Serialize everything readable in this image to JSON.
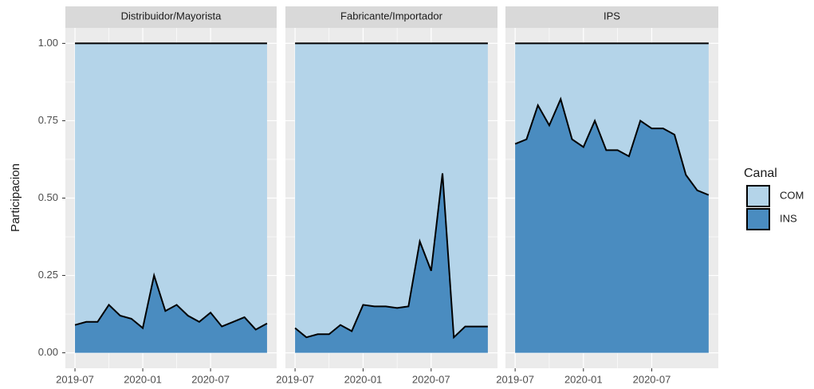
{
  "chart_data": [
    {
      "type": "stacked_area",
      "title": "Distribuidor/Mayorista",
      "ylabel": "Participacion",
      "x": [
        "2019-07",
        "2019-08",
        "2019-09",
        "2019-10",
        "2019-11",
        "2019-12",
        "2020-01",
        "2020-02",
        "2020-03",
        "2020-04",
        "2020-05",
        "2020-06",
        "2020-07",
        "2020-08",
        "2020-09",
        "2020-10",
        "2020-11",
        "2020-12"
      ],
      "series": [
        {
          "name": "INS",
          "color": "#4a8cc0",
          "values": [
            0.09,
            0.1,
            0.1,
            0.155,
            0.12,
            0.11,
            0.08,
            0.25,
            0.135,
            0.155,
            0.12,
            0.1,
            0.13,
            0.085,
            0.1,
            0.115,
            0.075,
            0.095
          ]
        },
        {
          "name": "COM",
          "color": "#b4d4e9",
          "values": [
            0.91,
            0.9,
            0.9,
            0.845,
            0.88,
            0.89,
            0.92,
            0.75,
            0.865,
            0.845,
            0.88,
            0.9,
            0.87,
            0.915,
            0.9,
            0.885,
            0.925,
            0.905
          ]
        }
      ],
      "ylim": [
        -0.05,
        1.05
      ],
      "yticks": [
        {
          "value": 0,
          "label": "0.00"
        },
        {
          "value": 0.25,
          "label": "0.25"
        },
        {
          "value": 0.5,
          "label": "0.50"
        },
        {
          "value": 0.75,
          "label": "0.75"
        },
        {
          "value": 1,
          "label": "1.00"
        }
      ],
      "xticks": [
        "2019-07",
        "2020-01",
        "2020-07"
      ],
      "grid": true
    },
    {
      "type": "stacked_area",
      "title": "Fabricante/Importador",
      "x": [
        "2019-07",
        "2019-08",
        "2019-09",
        "2019-10",
        "2019-11",
        "2019-12",
        "2020-01",
        "2020-02",
        "2020-03",
        "2020-04",
        "2020-05",
        "2020-06",
        "2020-07",
        "2020-08",
        "2020-09",
        "2020-10",
        "2020-11",
        "2020-12"
      ],
      "series": [
        {
          "name": "INS",
          "color": "#4a8cc0",
          "values": [
            0.08,
            0.05,
            0.06,
            0.06,
            0.09,
            0.07,
            0.155,
            0.15,
            0.15,
            0.145,
            0.15,
            0.36,
            0.265,
            0.58,
            0.05,
            0.085,
            0.085,
            0.085
          ]
        },
        {
          "name": "COM",
          "color": "#b4d4e9",
          "values": [
            0.92,
            0.95,
            0.94,
            0.94,
            0.91,
            0.93,
            0.845,
            0.85,
            0.85,
            0.855,
            0.85,
            0.64,
            0.735,
            0.42,
            0.95,
            0.915,
            0.915,
            0.915
          ]
        }
      ],
      "ylim": [
        -0.05,
        1.05
      ],
      "yticks": [
        {
          "value": 0,
          "label": "0.00"
        },
        {
          "value": 0.25,
          "label": "0.25"
        },
        {
          "value": 0.5,
          "label": "0.50"
        },
        {
          "value": 0.75,
          "label": "0.75"
        },
        {
          "value": 1,
          "label": "1.00"
        }
      ],
      "xticks": [
        "2019-07",
        "2020-01",
        "2020-07"
      ],
      "grid": true
    },
    {
      "type": "stacked_area",
      "title": "IPS",
      "legend": {
        "title": "Canal",
        "position": "right"
      },
      "x": [
        "2019-07",
        "2019-08",
        "2019-09",
        "2019-10",
        "2019-11",
        "2019-12",
        "2020-01",
        "2020-02",
        "2020-03",
        "2020-04",
        "2020-05",
        "2020-06",
        "2020-07",
        "2020-08",
        "2020-09",
        "2020-10",
        "2020-11",
        "2020-12"
      ],
      "series": [
        {
          "name": "INS",
          "color": "#4a8cc0",
          "values": [
            0.675,
            0.69,
            0.8,
            0.735,
            0.82,
            0.69,
            0.665,
            0.75,
            0.655,
            0.655,
            0.635,
            0.75,
            0.725,
            0.725,
            0.705,
            0.575,
            0.525,
            0.51
          ]
        },
        {
          "name": "COM",
          "color": "#b4d4e9",
          "values": [
            0.325,
            0.31,
            0.2,
            0.265,
            0.18,
            0.31,
            0.335,
            0.25,
            0.345,
            0.345,
            0.365,
            0.25,
            0.275,
            0.275,
            0.295,
            0.425,
            0.475,
            0.49
          ]
        }
      ],
      "ylim": [
        -0.05,
        1.05
      ],
      "yticks": [
        {
          "value": 0,
          "label": "0.00"
        },
        {
          "value": 0.25,
          "label": "0.25"
        },
        {
          "value": 0.5,
          "label": "0.50"
        },
        {
          "value": 0.75,
          "label": "0.75"
        },
        {
          "value": 1,
          "label": "1.00"
        }
      ],
      "xticks": [
        "2019-07",
        "2020-01",
        "2020-07"
      ],
      "grid": true
    }
  ]
}
